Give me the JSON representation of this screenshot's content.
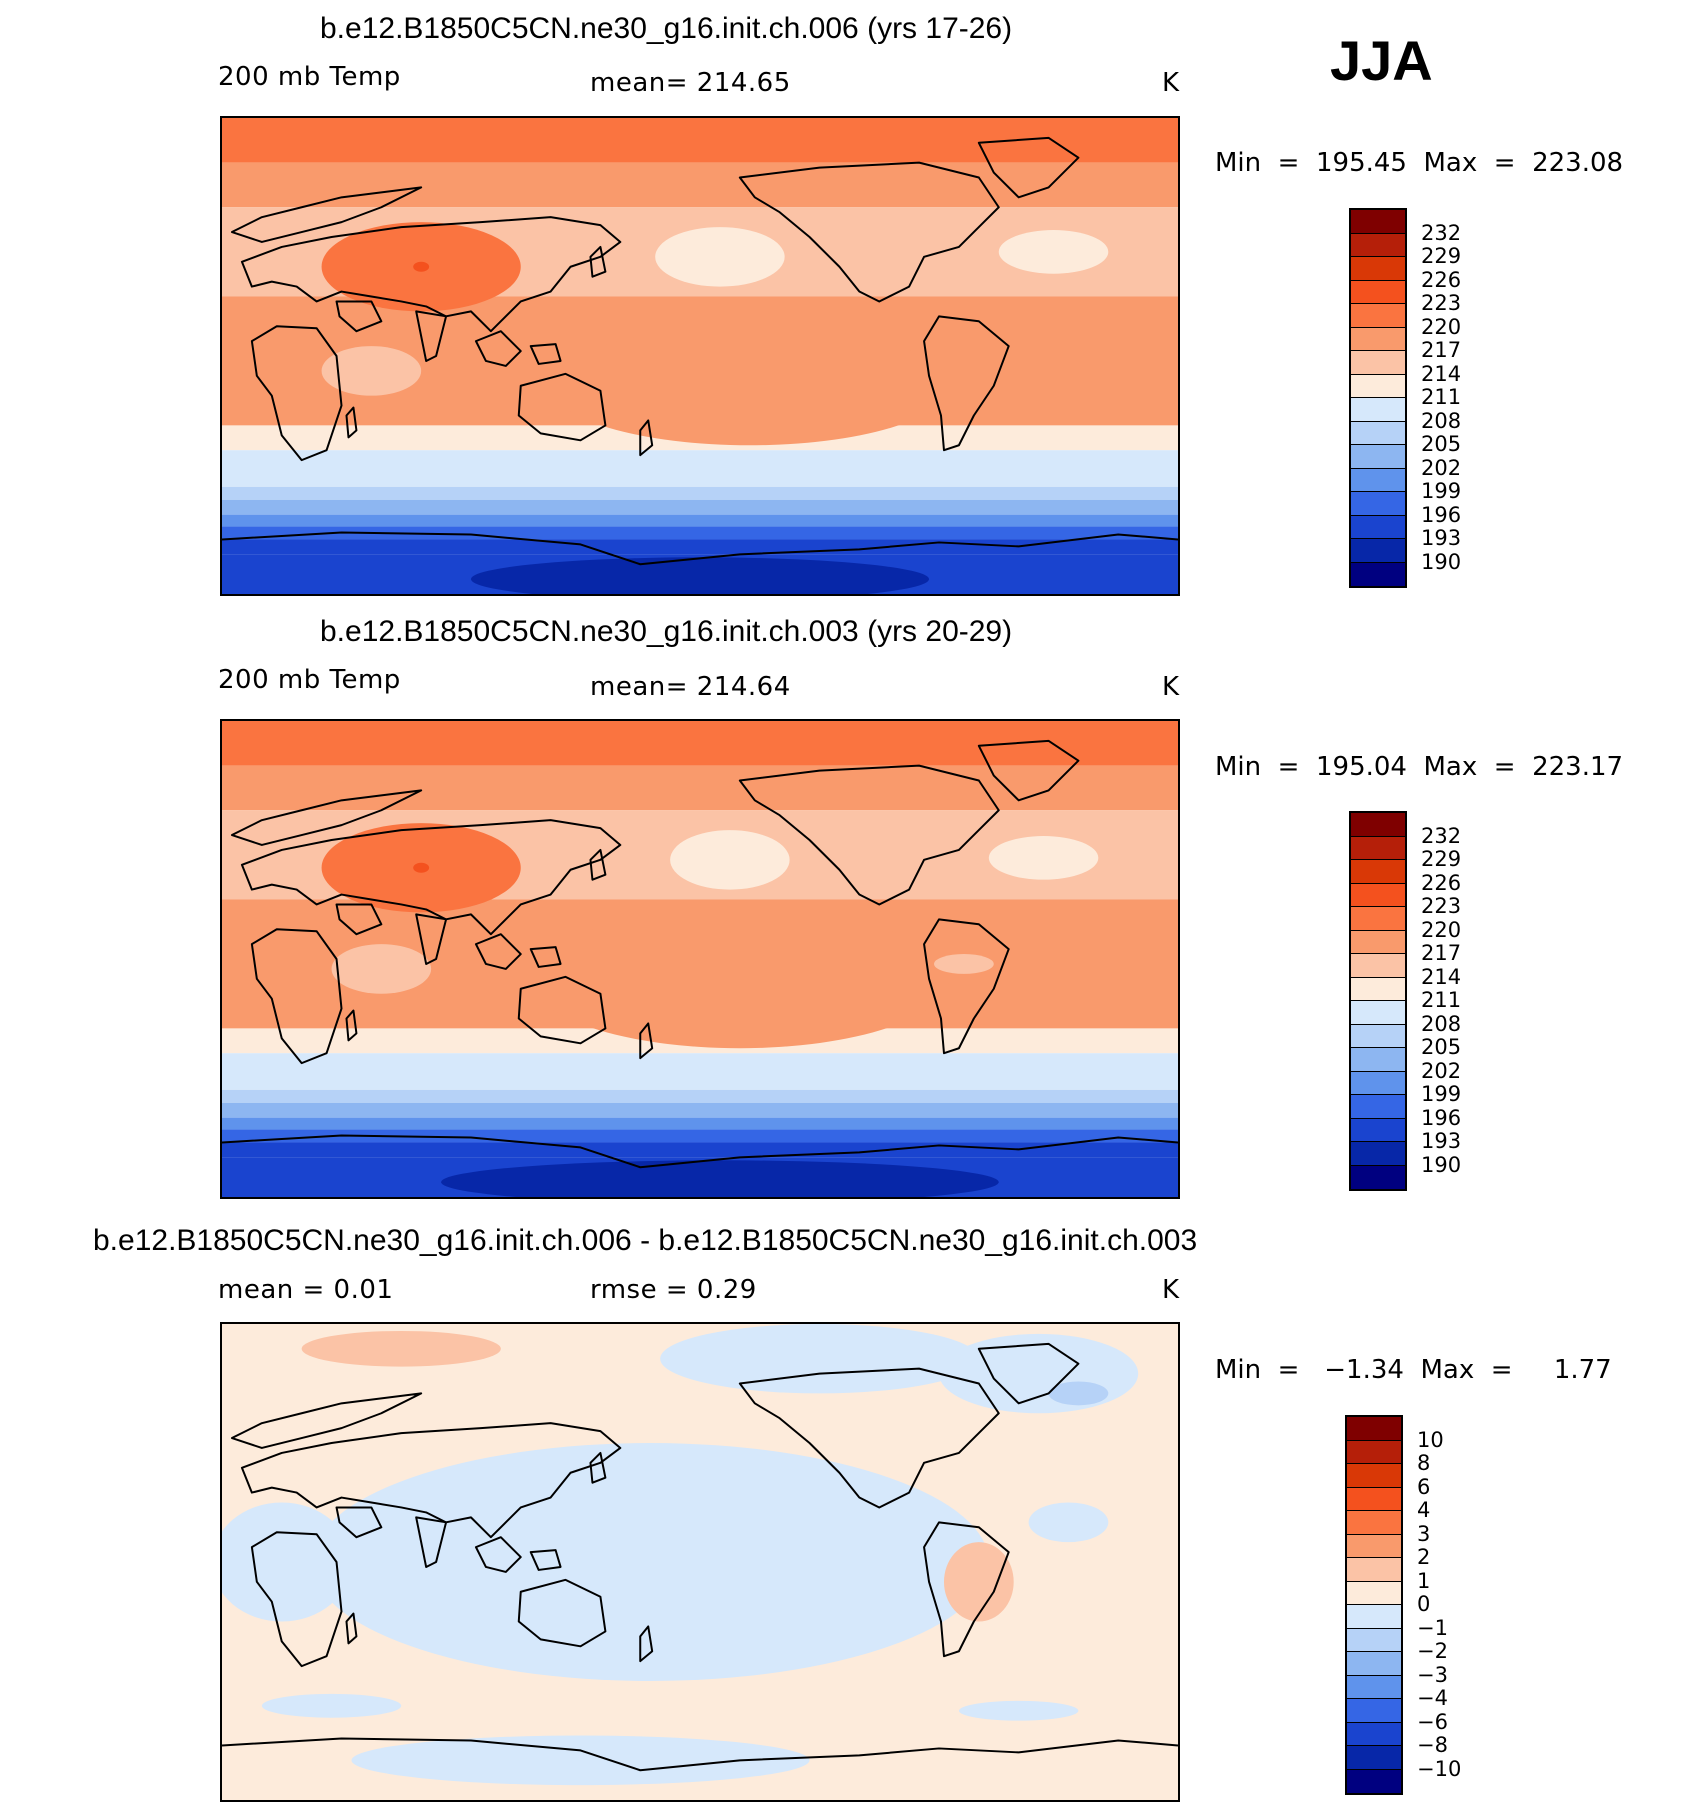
{
  "season": "JJA",
  "panels": [
    {
      "title": "b.e12.B1850C5CN.ne30_g16.init.ch.006 (yrs 17-26)",
      "left_label": "200 mb Temp",
      "center_label": "mean=  214.65",
      "units": "K",
      "minmax": "Min  =  195.45  Max  =  223.08",
      "levels": [
        "232",
        "229",
        "226",
        "223",
        "220",
        "217",
        "214",
        "211",
        "208",
        "205",
        "202",
        "199",
        "196",
        "193",
        "190"
      ],
      "colors": [
        "#7f0000",
        "#b51f09",
        "#d93806",
        "#f4511e",
        "#fa7440",
        "#f99a6c",
        "#fbc3a6",
        "#fdebdb",
        "#d6e8fb",
        "#b6d2f7",
        "#8db6f1",
        "#5f93ec",
        "#3566e5",
        "#1a44cf",
        "#0727a8",
        "#000080"
      ]
    },
    {
      "title": "b.e12.B1850C5CN.ne30_g16.init.ch.003 (yrs 20-29)",
      "left_label": "200 mb Temp",
      "center_label": "mean=  214.64",
      "units": "K",
      "minmax": "Min  =  195.04  Max  =  223.17",
      "levels": [
        "232",
        "229",
        "226",
        "223",
        "220",
        "217",
        "214",
        "211",
        "208",
        "205",
        "202",
        "199",
        "196",
        "193",
        "190"
      ],
      "colors": [
        "#7f0000",
        "#b51f09",
        "#d93806",
        "#f4511e",
        "#fa7440",
        "#f99a6c",
        "#fbc3a6",
        "#fdebdb",
        "#d6e8fb",
        "#b6d2f7",
        "#8db6f1",
        "#5f93ec",
        "#3566e5",
        "#1a44cf",
        "#0727a8",
        "#000080"
      ]
    },
    {
      "title": "b.e12.B1850C5CN.ne30_g16.init.ch.006 - b.e12.B1850C5CN.ne30_g16.init.ch.003",
      "left_label": "mean =     0.01",
      "center_label": "rmse =     0.29",
      "units": "K",
      "minmax": "Min  =   −1.34  Max  =     1.77",
      "levels": [
        "10",
        "8",
        "6",
        "4",
        "3",
        "2",
        "1",
        "0",
        "−1",
        "−2",
        "−3",
        "−4",
        "−6",
        "−8",
        "−10"
      ],
      "colors": [
        "#7f0000",
        "#b51f09",
        "#d93806",
        "#f4511e",
        "#fa7440",
        "#f99a6c",
        "#fbc3a6",
        "#fdebdb",
        "#d6e8fb",
        "#b6d2f7",
        "#8db6f1",
        "#5f93ec",
        "#3566e5",
        "#1a44cf",
        "#0727a8",
        "#000080"
      ]
    }
  ]
}
